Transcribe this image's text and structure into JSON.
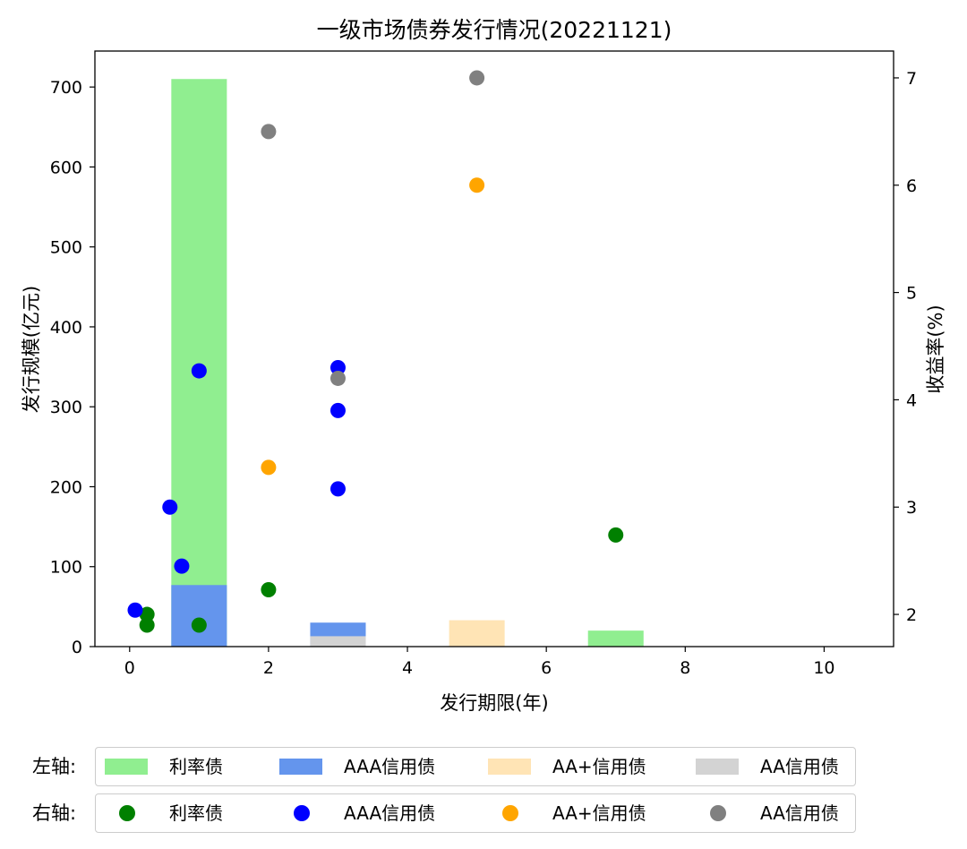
{
  "chart_data": {
    "type": "bar+scatter",
    "title": "一级市场债券发行情况(20221121)",
    "xlabel": "发行期限(年)",
    "ylabel_left": "发行规模(亿元)",
    "ylabel_right": "收益率(%)",
    "xlim": [
      -0.5,
      11
    ],
    "ylim_left": [
      0,
      745
    ],
    "ylim_right": [
      1.7,
      7.25
    ],
    "x_ticks": [
      0,
      2,
      4,
      6,
      8,
      10
    ],
    "y_left_ticks": [
      0,
      100,
      200,
      300,
      400,
      500,
      600,
      700
    ],
    "y_right_ticks": [
      2,
      3,
      4,
      5,
      6,
      7
    ],
    "bar_width": 0.8,
    "bar_series": [
      {
        "name": "利率债",
        "color": "#90EE90",
        "base": "zero",
        "data": [
          {
            "x": 1,
            "y": 710
          },
          {
            "x": 7,
            "y": 20
          }
        ]
      },
      {
        "name": "AAA信用债",
        "color": "#6495ED",
        "base": "zero",
        "data": [
          {
            "x": 1,
            "y": 77
          },
          {
            "x": 3,
            "y": 30
          }
        ]
      },
      {
        "name": "AA+信用债",
        "color": "#FFE4B5",
        "base": "zero",
        "data": [
          {
            "x": 5,
            "y": 33
          }
        ]
      },
      {
        "name": "AA信用债",
        "color": "#D3D3D3",
        "base": "zero",
        "data": [
          {
            "x": 3,
            "y": 13
          }
        ]
      }
    ],
    "scatter_series": [
      {
        "name": "利率债",
        "color": "#008000",
        "data": [
          {
            "x": 0.25,
            "y": 2.0
          },
          {
            "x": 0.25,
            "y": 1.9
          },
          {
            "x": 1,
            "y": 1.9
          },
          {
            "x": 2,
            "y": 2.23
          },
          {
            "x": 7,
            "y": 2.74
          }
        ]
      },
      {
        "name": "AAA信用债",
        "color": "#0000FF",
        "data": [
          {
            "x": 0.08,
            "y": 2.04
          },
          {
            "x": 0.58,
            "y": 3.0
          },
          {
            "x": 0.75,
            "y": 2.45
          },
          {
            "x": 1,
            "y": 4.27
          },
          {
            "x": 3,
            "y": 4.3
          },
          {
            "x": 3,
            "y": 3.9
          },
          {
            "x": 3,
            "y": 3.17
          }
        ]
      },
      {
        "name": "AA+信用债",
        "color": "#FFA500",
        "data": [
          {
            "x": 2,
            "y": 3.37
          },
          {
            "x": 5,
            "y": 6.0
          }
        ]
      },
      {
        "name": "AA信用债",
        "color": "#808080",
        "data": [
          {
            "x": 2,
            "y": 6.5
          },
          {
            "x": 3,
            "y": 4.2
          },
          {
            "x": 5,
            "y": 7.0
          }
        ]
      }
    ]
  },
  "legend": {
    "left_label": "左轴:",
    "right_label": "右轴:",
    "left_items": [
      {
        "name": "利率债",
        "color": "#90EE90"
      },
      {
        "name": "AAA信用债",
        "color": "#6495ED"
      },
      {
        "name": "AA+信用债",
        "color": "#FFE4B5"
      },
      {
        "name": "AA信用债",
        "color": "#D3D3D3"
      }
    ],
    "right_items": [
      {
        "name": "利率债",
        "color": "#008000"
      },
      {
        "name": "AAA信用债",
        "color": "#0000FF"
      },
      {
        "name": "AA+信用债",
        "color": "#FFA500"
      },
      {
        "name": "AA信用债",
        "color": "#808080"
      }
    ]
  }
}
